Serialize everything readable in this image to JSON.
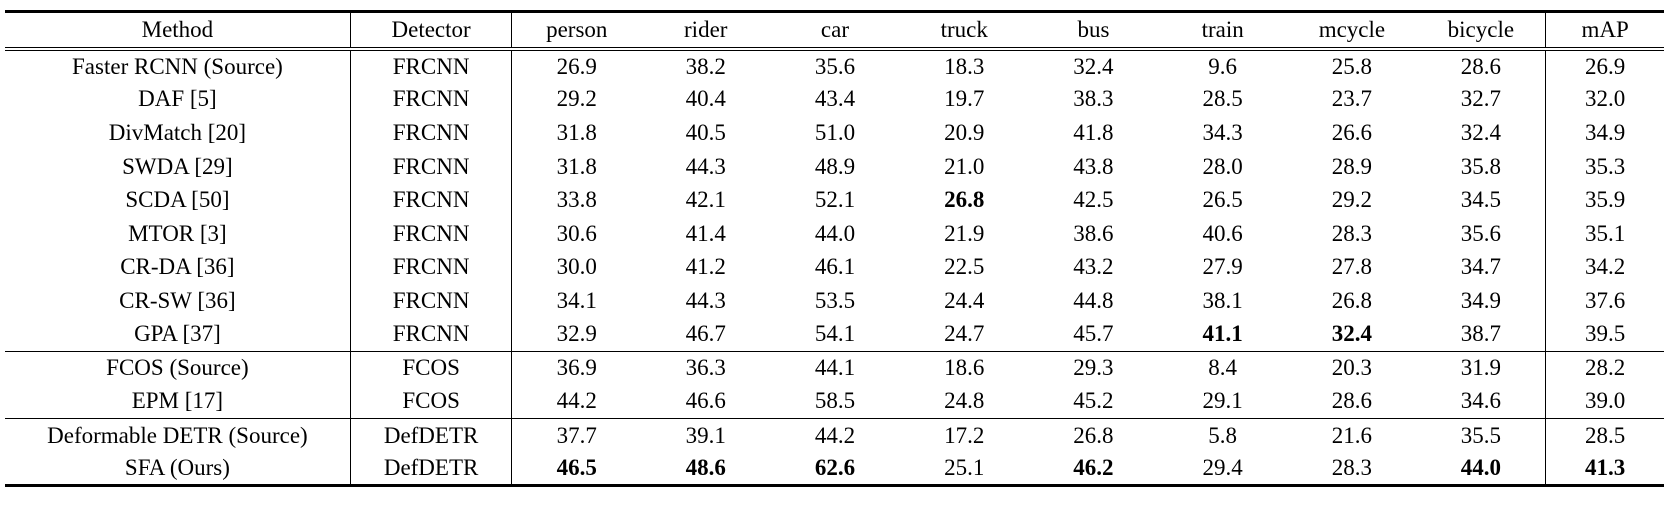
{
  "table": {
    "headers": {
      "method": "Method",
      "detector": "Detector",
      "person": "person",
      "rider": "rider",
      "car": "car",
      "truck": "truck",
      "bus": "bus",
      "train": "train",
      "mcycle": "mcycle",
      "bicycle": "bicycle",
      "map": "mAP"
    },
    "rows": [
      {
        "method": "Faster RCNN (Source)",
        "detector": "FRCNN",
        "person": "26.9",
        "rider": "38.2",
        "car": "35.6",
        "truck": "18.3",
        "bus": "32.4",
        "train": "9.6",
        "mcycle": "25.8",
        "bicycle": "28.6",
        "map": "26.9"
      },
      {
        "method": "DAF [5]",
        "detector": "FRCNN",
        "person": "29.2",
        "rider": "40.4",
        "car": "43.4",
        "truck": "19.7",
        "bus": "38.3",
        "train": "28.5",
        "mcycle": "23.7",
        "bicycle": "32.7",
        "map": "32.0"
      },
      {
        "method": "DivMatch [20]",
        "detector": "FRCNN",
        "person": "31.8",
        "rider": "40.5",
        "car": "51.0",
        "truck": "20.9",
        "bus": "41.8",
        "train": "34.3",
        "mcycle": "26.6",
        "bicycle": "32.4",
        "map": "34.9"
      },
      {
        "method": "SWDA [29]",
        "detector": "FRCNN",
        "person": "31.8",
        "rider": "44.3",
        "car": "48.9",
        "truck": "21.0",
        "bus": "43.8",
        "train": "28.0",
        "mcycle": "28.9",
        "bicycle": "35.8",
        "map": "35.3"
      },
      {
        "method": "SCDA [50]",
        "detector": "FRCNN",
        "person": "33.8",
        "rider": "42.1",
        "car": "52.1",
        "truck": "26.8",
        "bus": "42.5",
        "train": "26.5",
        "mcycle": "29.2",
        "bicycle": "34.5",
        "map": "35.9"
      },
      {
        "method": "MTOR [3]",
        "detector": "FRCNN",
        "person": "30.6",
        "rider": "41.4",
        "car": "44.0",
        "truck": "21.9",
        "bus": "38.6",
        "train": "40.6",
        "mcycle": "28.3",
        "bicycle": "35.6",
        "map": "35.1"
      },
      {
        "method": "CR-DA [36]",
        "detector": "FRCNN",
        "person": "30.0",
        "rider": "41.2",
        "car": "46.1",
        "truck": "22.5",
        "bus": "43.2",
        "train": "27.9",
        "mcycle": "27.8",
        "bicycle": "34.7",
        "map": "34.2"
      },
      {
        "method": "CR-SW [36]",
        "detector": "FRCNN",
        "person": "34.1",
        "rider": "44.3",
        "car": "53.5",
        "truck": "24.4",
        "bus": "44.8",
        "train": "38.1",
        "mcycle": "26.8",
        "bicycle": "34.9",
        "map": "37.6"
      },
      {
        "method": "GPA [37]",
        "detector": "FRCNN",
        "person": "32.9",
        "rider": "46.7",
        "car": "54.1",
        "truck": "24.7",
        "bus": "45.7",
        "train": "41.1",
        "mcycle": "32.4",
        "bicycle": "38.7",
        "map": "39.5"
      },
      {
        "method": "FCOS (Source)",
        "detector": "FCOS",
        "person": "36.9",
        "rider": "36.3",
        "car": "44.1",
        "truck": "18.6",
        "bus": "29.3",
        "train": "8.4",
        "mcycle": "20.3",
        "bicycle": "31.9",
        "map": "28.2"
      },
      {
        "method": "EPM [17]",
        "detector": "FCOS",
        "person": "44.2",
        "rider": "46.6",
        "car": "58.5",
        "truck": "24.8",
        "bus": "45.2",
        "train": "29.1",
        "mcycle": "28.6",
        "bicycle": "34.6",
        "map": "39.0"
      },
      {
        "method": "Deformable DETR (Source)",
        "detector": "DefDETR",
        "person": "37.7",
        "rider": "39.1",
        "car": "44.2",
        "truck": "17.2",
        "bus": "26.8",
        "train": "5.8",
        "mcycle": "21.6",
        "bicycle": "35.5",
        "map": "28.5"
      },
      {
        "method": "SFA (Ours)",
        "detector": "DefDETR",
        "person": "46.5",
        "rider": "48.6",
        "car": "62.6",
        "truck": "25.1",
        "bus": "46.2",
        "train": "29.4",
        "mcycle": "28.3",
        "bicycle": "44.0",
        "map": "41.3"
      }
    ],
    "group_starts": [
      9,
      11
    ],
    "best": {
      "4": [
        "truck"
      ],
      "8": [
        "train",
        "mcycle"
      ],
      "12": [
        "person",
        "rider",
        "car",
        "bus",
        "bicycle",
        "map"
      ]
    }
  }
}
